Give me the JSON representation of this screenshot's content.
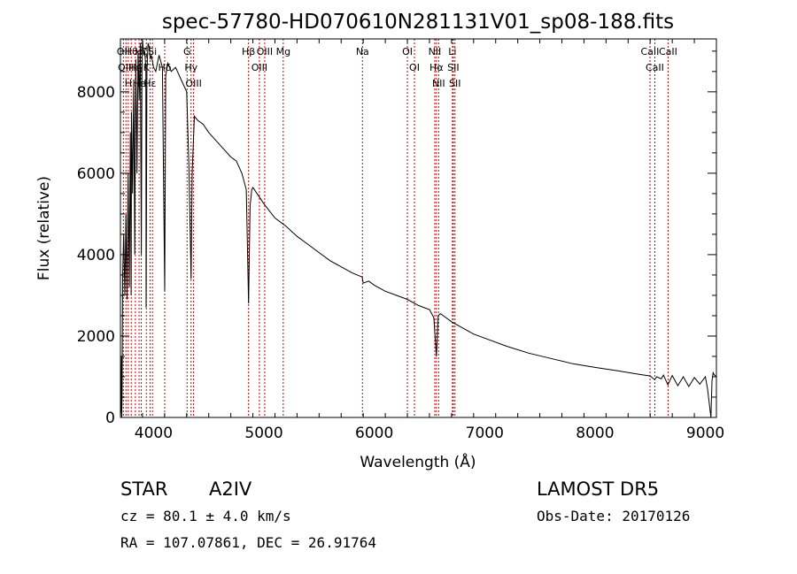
{
  "chart_data": {
    "type": "line",
    "title": "spec-57780-HD070610N281131V01_sp08-188.fits",
    "xlabel": "Wavelength (Å)",
    "ylabel": "Flux (relative)",
    "xlim": [
      3700,
      9100
    ],
    "ylim": [
      0,
      9300
    ],
    "xticks": [
      4000,
      5000,
      6000,
      7000,
      8000,
      9000
    ],
    "yticks": [
      0,
      2000,
      4000,
      6000,
      8000
    ],
    "grid": false,
    "line_color": "#000000",
    "marker_color": "#cc0000",
    "series": [
      {
        "x": [
          3700,
          3705,
          3710,
          3712,
          3715,
          3720,
          3730,
          3740,
          3750,
          3760,
          3770,
          3780,
          3790,
          3797,
          3800,
          3810,
          3820,
          3830,
          3835,
          3840,
          3850,
          3860,
          3870,
          3880,
          3889,
          3895,
          3900,
          3910,
          3920,
          3930,
          3933,
          3940,
          3950,
          3960,
          3970,
          3980,
          4000,
          4020,
          4050,
          4080,
          4101,
          4110,
          4130,
          4160,
          4200,
          4250,
          4300,
          4320,
          4340,
          4350,
          4370,
          4400,
          4450,
          4500,
          4600,
          4700,
          4750,
          4800,
          4840,
          4861,
          4875,
          4890,
          4900,
          4950,
          5000,
          5100,
          5200,
          5300,
          5400,
          5500,
          5600,
          5700,
          5800,
          5890,
          5900,
          5950,
          6000,
          6100,
          6200,
          6300,
          6400,
          6500,
          6540,
          6563,
          6580,
          6600,
          6700,
          6800,
          6900,
          7000,
          7200,
          7400,
          7600,
          7800,
          8000,
          8200,
          8400,
          8500,
          8540,
          8560,
          8600,
          8620,
          8660,
          8700,
          8750,
          8800,
          8850,
          8900,
          8950,
          9000,
          9020,
          9050,
          9060,
          9070,
          9080,
          9100
        ],
        "y": [
          0,
          200,
          1500,
          0,
          600,
          3500,
          4500,
          3000,
          5000,
          2900,
          6000,
          3200,
          7000,
          3000,
          7500,
          5500,
          8200,
          4000,
          7000,
          8800,
          6000,
          9000,
          7800,
          9200,
          4000,
          8500,
          9300,
          8900,
          9000,
          8600,
          2700,
          8500,
          9200,
          9100,
          8800,
          8900,
          8600,
          8500,
          8900,
          8600,
          3100,
          8400,
          8700,
          8500,
          8600,
          8300,
          8000,
          6200,
          3400,
          6000,
          7400,
          7300,
          7200,
          7000,
          6700,
          6400,
          6300,
          6000,
          5600,
          2800,
          5200,
          5600,
          5650,
          5450,
          5250,
          4900,
          4700,
          4450,
          4250,
          4050,
          3850,
          3700,
          3550,
          3450,
          3300,
          3350,
          3250,
          3100,
          3000,
          2900,
          2750,
          2650,
          2450,
          1500,
          2500,
          2550,
          2350,
          2200,
          2050,
          1950,
          1750,
          1580,
          1450,
          1320,
          1230,
          1150,
          1060,
          1020,
          930,
          1000,
          950,
          1040,
          800,
          1030,
          780,
          1000,
          760,
          980,
          820,
          1000,
          700,
          0,
          900,
          1100,
          1050,
          1000
        ]
      }
    ],
    "lines": [
      {
        "w": 3727,
        "label": "OII"
      },
      {
        "w": 3750,
        "label": "OIII"
      },
      {
        "w": 3771,
        "label": "H"
      },
      {
        "w": 3798,
        "label": "Hθ"
      },
      {
        "w": 3835,
        "label": "Hη"
      },
      {
        "w": 3869,
        "label": "He"
      },
      {
        "w": 3889,
        "label": "Hζ"
      },
      {
        "w": 3935,
        "label": "K"
      },
      {
        "w": 3968,
        "label": "Hε"
      },
      {
        "w": 3990,
        "label": "Si"
      },
      {
        "w": 4101,
        "label": "Hδ"
      },
      {
        "w": 4304,
        "label": "G"
      },
      {
        "w": 4340,
        "label": "Hγ"
      },
      {
        "w": 4363,
        "label": "OIII"
      },
      {
        "w": 4861,
        "label": "Hβ"
      },
      {
        "w": 4959,
        "label": "OIII"
      },
      {
        "w": 5007,
        "label": "OIII"
      },
      {
        "w": 5175,
        "label": "Mg"
      },
      {
        "w": 5893,
        "label": "Na"
      },
      {
        "w": 6300,
        "label": "OI"
      },
      {
        "w": 6364,
        "label": "OI"
      },
      {
        "w": 6548,
        "label": "NII"
      },
      {
        "w": 6563,
        "label": "Hα"
      },
      {
        "w": 6583,
        "label": "NII"
      },
      {
        "w": 6708,
        "label": "Li"
      },
      {
        "w": 6716,
        "label": "SII"
      },
      {
        "w": 6731,
        "label": "SII"
      },
      {
        "w": 8498,
        "label": "CaII"
      },
      {
        "w": 8542,
        "label": "CaII"
      },
      {
        "w": 8662,
        "label": "CaII"
      }
    ]
  },
  "info": {
    "object_type": "STAR",
    "subclass": "A2IV",
    "survey": "LAMOST  DR5",
    "cz": "cz = 80.1 ± 4.0 km/s",
    "obs_date": "Obs-Date: 20170126",
    "coords": "RA = 107.07861, DEC =  26.91764"
  }
}
